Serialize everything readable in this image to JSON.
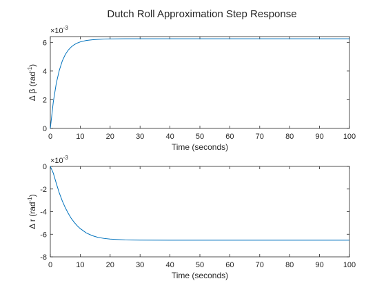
{
  "figure": {
    "title": "Dutch Roll Approximation Step Response"
  },
  "colors": {
    "series": "#0072bd",
    "axes": "#262626",
    "background": "#ffffff"
  },
  "chart_data": [
    {
      "type": "line",
      "title": "Dutch Roll Approximation Step Response",
      "xlabel": "Time (seconds)",
      "ylabel": {
        "main": "Δ β (rad",
        "sup": "-1",
        "close": ")"
      },
      "y_multiplier": {
        "base": "×10",
        "exp": "-3"
      },
      "xlim": [
        0,
        100
      ],
      "ylim": [
        0,
        6.4
      ],
      "xticks": [
        0,
        10,
        20,
        30,
        40,
        50,
        60,
        70,
        80,
        90,
        100
      ],
      "yticks": [
        0,
        2,
        4,
        6
      ],
      "grid": false,
      "series": [
        {
          "x": [
            0,
            1,
            2,
            3,
            4,
            5,
            6,
            7,
            8,
            9,
            10,
            12,
            14,
            16,
            18,
            20,
            25,
            30,
            40,
            50,
            60,
            70,
            80,
            90,
            100
          ],
          "values": [
            0,
            1.85,
            3.15,
            4.05,
            4.7,
            5.15,
            5.46,
            5.68,
            5.84,
            5.95,
            6.03,
            6.13,
            6.18,
            6.21,
            6.23,
            6.24,
            6.25,
            6.25,
            6.25,
            6.25,
            6.25,
            6.25,
            6.25,
            6.25,
            6.25
          ]
        }
      ]
    },
    {
      "type": "line",
      "xlabel": "Time (seconds)",
      "ylabel": {
        "main": "Δ r (rad",
        "sup": "-1",
        "close": ")"
      },
      "y_multiplier": {
        "base": "×10",
        "exp": "-3"
      },
      "xlim": [
        0,
        100
      ],
      "ylim": [
        -8,
        0
      ],
      "xticks": [
        0,
        10,
        20,
        30,
        40,
        50,
        60,
        70,
        80,
        90,
        100
      ],
      "yticks": [
        -8,
        -6,
        -4,
        -2,
        0
      ],
      "grid": false,
      "series": [
        {
          "x": [
            0,
            1,
            2,
            3,
            4,
            5,
            6,
            7,
            8,
            9,
            10,
            12,
            14,
            16,
            18,
            20,
            25,
            30,
            40,
            50,
            60,
            70,
            80,
            90,
            100
          ],
          "values": [
            0,
            -0.6,
            -1.5,
            -2.35,
            -3.05,
            -3.65,
            -4.15,
            -4.6,
            -4.95,
            -5.25,
            -5.5,
            -5.88,
            -6.12,
            -6.28,
            -6.37,
            -6.43,
            -6.5,
            -6.52,
            -6.53,
            -6.53,
            -6.53,
            -6.53,
            -6.53,
            -6.53,
            -6.53
          ]
        }
      ]
    }
  ]
}
